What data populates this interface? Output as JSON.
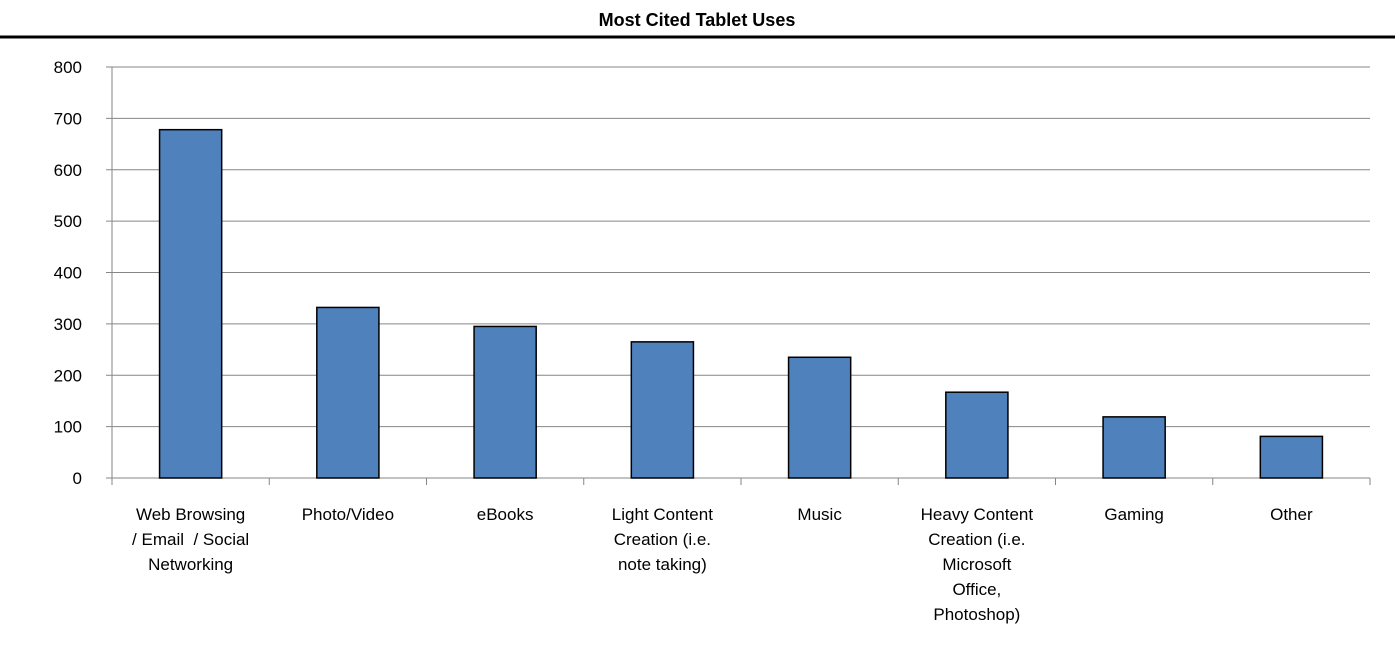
{
  "chart_data": {
    "type": "bar",
    "title": "Most Cited Tablet Uses",
    "xlabel": "",
    "ylabel": "",
    "ylim": [
      0,
      800
    ],
    "yticks": [
      0,
      100,
      200,
      300,
      400,
      500,
      600,
      700,
      800
    ],
    "grid": true,
    "legend": "none",
    "categories": [
      "Web Browsing / Email / Social Networking",
      "Photo/Video",
      "eBooks",
      "Light Content Creation (i.e. note taking)",
      "Music",
      "Heavy Content Creation (i.e. Microsoft Office, Photoshop)",
      "Gaming",
      "Other"
    ],
    "category_lines": [
      [
        "Web Browsing",
        "/ Email  / Social",
        "Networking"
      ],
      [
        "Photo/Video"
      ],
      [
        "eBooks"
      ],
      [
        "Light Content",
        "Creation (i.e.",
        "note taking)"
      ],
      [
        "Music"
      ],
      [
        "Heavy Content",
        "Creation (i.e.",
        "Microsoft",
        "Office,",
        "Photoshop)"
      ],
      [
        "Gaming"
      ],
      [
        "Other"
      ]
    ],
    "values": [
      678,
      332,
      295,
      265,
      235,
      167,
      119,
      81
    ],
    "colors": {
      "bar_fill": "#4f81bd",
      "bar_stroke": "#000000",
      "grid": "#868686",
      "axis": "#868686",
      "title_rule": "#000000",
      "text": "#000000"
    }
  }
}
